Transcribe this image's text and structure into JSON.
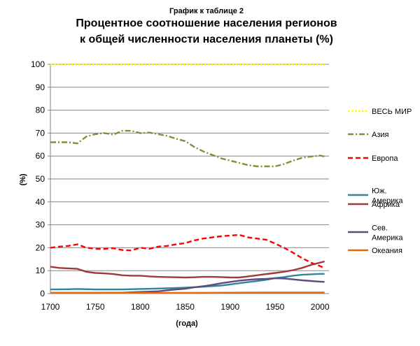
{
  "chart_data": {
    "type": "line",
    "suptitle": "График к таблице 2",
    "title_lines": [
      "Процентное соотношение населения регионов",
      "к общей численности населения планеты (%)"
    ],
    "xlabel": "(года)",
    "ylabel": "(%)",
    "xlim": [
      1700,
      2010
    ],
    "ylim": [
      0,
      100
    ],
    "xticks": [
      1700,
      1750,
      1800,
      1850,
      1900,
      1950,
      2000
    ],
    "yticks": [
      0,
      10,
      20,
      30,
      40,
      50,
      60,
      70,
      80,
      90,
      100
    ],
    "grid": "horizontal",
    "legend_position": "right",
    "series": [
      {
        "name": "ВЕСЬ МИР",
        "color": "#ffff00",
        "dash": "dotted",
        "points": [
          [
            1700,
            100
          ],
          [
            2005,
            100
          ]
        ]
      },
      {
        "name": "Азия",
        "color": "#77933c",
        "dash": "dashdot",
        "points": [
          [
            1700,
            66
          ],
          [
            1720,
            66
          ],
          [
            1730,
            65.5
          ],
          [
            1740,
            68.5
          ],
          [
            1750,
            69.5
          ],
          [
            1760,
            70
          ],
          [
            1770,
            69.3
          ],
          [
            1780,
            71
          ],
          [
            1790,
            71
          ],
          [
            1800,
            70
          ],
          [
            1810,
            70.2
          ],
          [
            1820,
            69.5
          ],
          [
            1830,
            68.8
          ],
          [
            1840,
            67.5
          ],
          [
            1850,
            66.5
          ],
          [
            1860,
            64
          ],
          [
            1870,
            62
          ],
          [
            1880,
            60.5
          ],
          [
            1890,
            59
          ],
          [
            1900,
            58
          ],
          [
            1910,
            57
          ],
          [
            1920,
            56
          ],
          [
            1930,
            55.5
          ],
          [
            1940,
            55.5
          ],
          [
            1950,
            55.5
          ],
          [
            1960,
            56.5
          ],
          [
            1970,
            58
          ],
          [
            1980,
            59.2
          ],
          [
            1990,
            59.8
          ],
          [
            2000,
            60.2
          ],
          [
            2005,
            59.8
          ]
        ]
      },
      {
        "name": "Европа",
        "color": "#ff0000",
        "dash": "dashed",
        "points": [
          [
            1700,
            20
          ],
          [
            1710,
            20.5
          ],
          [
            1720,
            20.8
          ],
          [
            1730,
            21.5
          ],
          [
            1740,
            20
          ],
          [
            1750,
            19.5
          ],
          [
            1760,
            19.5
          ],
          [
            1770,
            19.8
          ],
          [
            1780,
            19
          ],
          [
            1790,
            18.8
          ],
          [
            1800,
            20
          ],
          [
            1810,
            19.5
          ],
          [
            1820,
            20.5
          ],
          [
            1830,
            20.8
          ],
          [
            1840,
            21.5
          ],
          [
            1850,
            22
          ],
          [
            1860,
            23.2
          ],
          [
            1870,
            24
          ],
          [
            1880,
            24.5
          ],
          [
            1890,
            25
          ],
          [
            1900,
            25.3
          ],
          [
            1910,
            25.6
          ],
          [
            1920,
            24.5
          ],
          [
            1930,
            24
          ],
          [
            1940,
            23.5
          ],
          [
            1950,
            21.8
          ],
          [
            1960,
            20
          ],
          [
            1970,
            17.8
          ],
          [
            1980,
            15.5
          ],
          [
            1990,
            13.5
          ],
          [
            2000,
            12
          ],
          [
            2005,
            11
          ]
        ]
      },
      {
        "name": "Юж. Америка",
        "color": "#31859c",
        "dash": "solid",
        "points": [
          [
            1700,
            1.8
          ],
          [
            1720,
            1.9
          ],
          [
            1730,
            2
          ],
          [
            1750,
            1.8
          ],
          [
            1780,
            1.8
          ],
          [
            1800,
            2
          ],
          [
            1830,
            2.3
          ],
          [
            1850,
            2.6
          ],
          [
            1870,
            3
          ],
          [
            1890,
            3.5
          ],
          [
            1900,
            4
          ],
          [
            1910,
            4.5
          ],
          [
            1920,
            5
          ],
          [
            1930,
            5.5
          ],
          [
            1940,
            6
          ],
          [
            1950,
            6.7
          ],
          [
            1960,
            7.2
          ],
          [
            1970,
            7.8
          ],
          [
            1980,
            8.2
          ],
          [
            1990,
            8.4
          ],
          [
            2000,
            8.6
          ],
          [
            2005,
            8.6
          ]
        ]
      },
      {
        "name": "Африка",
        "color": "#a0393b",
        "dash": "solid",
        "points": [
          [
            1700,
            11.7
          ],
          [
            1710,
            11.2
          ],
          [
            1720,
            11
          ],
          [
            1730,
            10.8
          ],
          [
            1740,
            9.5
          ],
          [
            1750,
            9
          ],
          [
            1760,
            8.8
          ],
          [
            1770,
            8.5
          ],
          [
            1780,
            8
          ],
          [
            1790,
            7.8
          ],
          [
            1800,
            7.8
          ],
          [
            1810,
            7.5
          ],
          [
            1820,
            7.3
          ],
          [
            1830,
            7.2
          ],
          [
            1840,
            7.1
          ],
          [
            1850,
            7
          ],
          [
            1860,
            7.1
          ],
          [
            1870,
            7.3
          ],
          [
            1880,
            7.3
          ],
          [
            1890,
            7.2
          ],
          [
            1900,
            7
          ],
          [
            1910,
            7
          ],
          [
            1920,
            7.5
          ],
          [
            1930,
            8
          ],
          [
            1940,
            8.5
          ],
          [
            1950,
            9
          ],
          [
            1960,
            9.5
          ],
          [
            1970,
            10.2
          ],
          [
            1980,
            11.2
          ],
          [
            1990,
            12.5
          ],
          [
            2000,
            13.5
          ],
          [
            2005,
            14
          ]
        ]
      },
      {
        "name": "Сев. Америка",
        "color": "#604a7b",
        "dash": "solid",
        "points": [
          [
            1700,
            0.3
          ],
          [
            1750,
            0.3
          ],
          [
            1780,
            0.4
          ],
          [
            1800,
            0.7
          ],
          [
            1820,
            1
          ],
          [
            1840,
            1.8
          ],
          [
            1850,
            2.1
          ],
          [
            1860,
            2.7
          ],
          [
            1870,
            3.2
          ],
          [
            1880,
            3.8
          ],
          [
            1890,
            4.5
          ],
          [
            1900,
            5.1
          ],
          [
            1910,
            5.6
          ],
          [
            1920,
            6
          ],
          [
            1930,
            6.3
          ],
          [
            1940,
            6.4
          ],
          [
            1950,
            6.7
          ],
          [
            1960,
            6.6
          ],
          [
            1970,
            6.2
          ],
          [
            1980,
            5.8
          ],
          [
            1990,
            5.5
          ],
          [
            2000,
            5.2
          ],
          [
            2005,
            5.1
          ]
        ]
      },
      {
        "name": "Океания",
        "color": "#e46c0a",
        "dash": "solid",
        "points": [
          [
            1700,
            0.3
          ],
          [
            1800,
            0.3
          ],
          [
            1850,
            0.3
          ],
          [
            1900,
            0.4
          ],
          [
            1950,
            0.5
          ],
          [
            2000,
            0.5
          ],
          [
            2005,
            0.5
          ]
        ]
      }
    ]
  }
}
